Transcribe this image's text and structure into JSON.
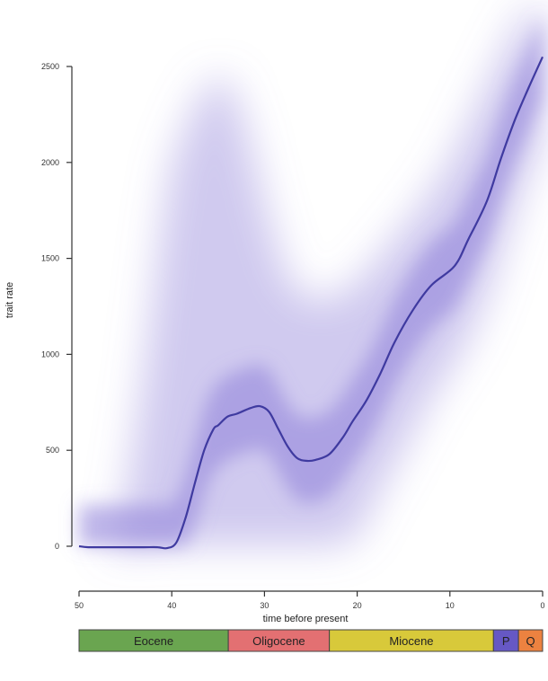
{
  "chart_data": {
    "type": "line",
    "title": "",
    "xlabel": "time before present",
    "ylabel": "trait rate",
    "x_ticks": [
      "50",
      "40",
      "30",
      "20",
      "10",
      "0"
    ],
    "y_ticks": [
      "0",
      "500",
      "1000",
      "1500",
      "2000",
      "2500"
    ],
    "xlim": [
      50,
      0
    ],
    "ylim": [
      0,
      2500
    ],
    "grid": false,
    "series": [
      {
        "color": "#3f3aa0",
        "x": [
          50,
          49,
          47,
          45,
          43,
          41.5,
          40.5,
          39.5,
          38.5,
          37.5,
          36.5,
          35.5,
          35,
          34,
          33,
          31.5,
          30.5,
          29.5,
          28.5,
          27.5,
          26.5,
          25.5,
          24.5,
          23,
          21.5,
          20.5,
          19,
          17.5,
          16,
          14,
          12,
          9.5,
          8,
          6,
          4.5,
          3,
          1.5,
          0
        ],
        "y": [
          0,
          -5,
          -5,
          -5,
          -5,
          -5,
          -10,
          20,
          150,
          330,
          500,
          610,
          630,
          675,
          690,
          720,
          730,
          700,
          610,
          520,
          460,
          445,
          450,
          480,
          570,
          650,
          760,
          900,
          1060,
          1230,
          1360,
          1460,
          1600,
          1800,
          2020,
          2220,
          2390,
          2550
        ]
      }
    ],
    "uncertainty_band": {
      "color": "#8e80d8",
      "x": [
        47,
        45,
        43,
        41,
        40,
        38,
        36,
        34,
        32,
        30,
        28,
        26,
        24,
        22,
        20,
        18,
        16,
        14,
        12,
        10,
        8,
        6,
        4,
        2,
        0
      ],
      "upper": [
        0,
        250,
        900,
        1700,
        2000,
        2250,
        2420,
        2450,
        2200,
        1800,
        1450,
        1300,
        1280,
        1300,
        1380,
        1480,
        1600,
        1720,
        1850,
        2000,
        2200,
        2400,
        2600,
        2780,
        2850
      ],
      "lower": [
        0,
        -30,
        -10,
        0,
        0,
        0,
        0,
        0,
        0,
        0,
        0,
        0,
        0,
        0,
        50,
        250,
        420,
        600,
        780,
        920,
        1080,
        1300,
        1600,
        1900,
        2100
      ]
    },
    "timescale": [
      {
        "label": "Eocene",
        "start": 50,
        "end": 33.9,
        "color": "#6aa550"
      },
      {
        "label": "Oligocene",
        "start": 33.9,
        "end": 23,
        "color": "#e37072"
      },
      {
        "label": "Miocene",
        "start": 23,
        "end": 5.3,
        "color": "#d8c93a"
      },
      {
        "label": "P",
        "start": 5.3,
        "end": 2.6,
        "color": "#6658c4"
      },
      {
        "label": "Q",
        "start": 2.6,
        "end": 0,
        "color": "#ec8240"
      }
    ]
  }
}
